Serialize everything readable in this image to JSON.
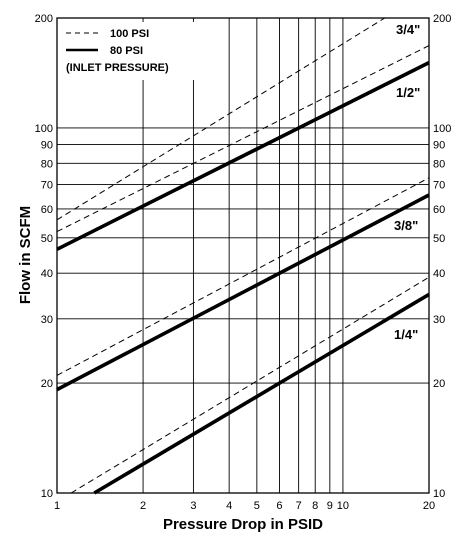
{
  "chart_data": {
    "type": "line",
    "xlabel": "Pressure Drop in PSID",
    "ylabel": "Flow in SCFM",
    "x_scale": "log",
    "y_scale": "log",
    "xlim": [
      1,
      20
    ],
    "ylim": [
      10,
      200
    ],
    "grid": true,
    "x_ticks": [
      1,
      2,
      3,
      4,
      5,
      6,
      7,
      8,
      9,
      10,
      20
    ],
    "y_ticks": [
      10,
      20,
      30,
      40,
      50,
      60,
      70,
      80,
      90,
      100,
      200
    ],
    "legend": {
      "placement": "top-left",
      "entries": [
        {
          "label": "100 PSI",
          "style": "dashed"
        },
        {
          "label": "80 PSI",
          "style": "solid"
        }
      ],
      "note": "(INLET PRESSURE)"
    },
    "series": [
      {
        "name": "3/4\"",
        "pressure": "80 PSI",
        "style": "solid",
        "x": [
          1,
          20
        ],
        "y": [
          46.5,
          151
        ]
      },
      {
        "name": "3/4\"",
        "pressure": "100 PSI",
        "style": "dashed",
        "x": [
          1,
          14
        ],
        "y": [
          56,
          200
        ]
      },
      {
        "name": "3/4\"",
        "pressure": "100 PSI",
        "style": "dashed",
        "x": [
          1,
          20
        ],
        "y": [
          52,
          168
        ]
      },
      {
        "name": "3/8\"",
        "pressure": "80 PSI",
        "style": "solid",
        "x": [
          1,
          20
        ],
        "y": [
          19.2,
          65.5
        ]
      },
      {
        "name": "3/8\"",
        "pressure": "100 PSI",
        "style": "dashed",
        "x": [
          1,
          20
        ],
        "y": [
          21,
          73
        ]
      },
      {
        "name": "1/4\"",
        "pressure": "80 PSI",
        "style": "solid",
        "x": [
          1.35,
          20
        ],
        "y": [
          10,
          35
        ]
      },
      {
        "name": "1/4\"",
        "pressure": "100 PSI",
        "style": "dashed",
        "x": [
          1.12,
          20
        ],
        "y": [
          10,
          39
        ]
      }
    ],
    "curve_labels": [
      "3/4\"",
      "1/2\"",
      "3/8\"",
      "1/4\""
    ]
  }
}
